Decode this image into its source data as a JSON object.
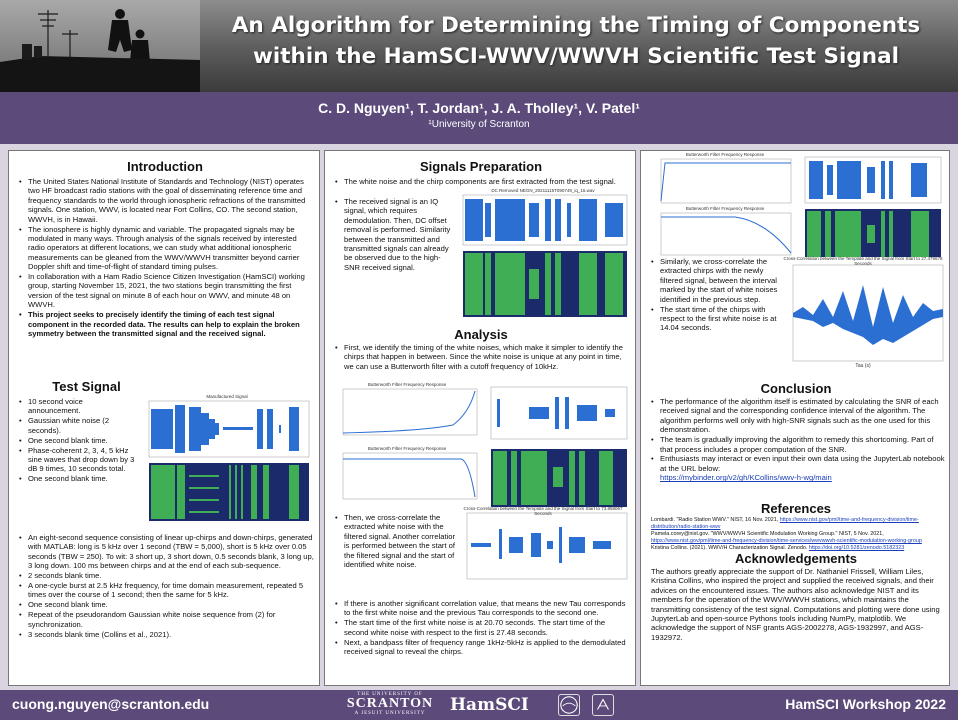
{
  "header": {
    "title": "An Algorithm for Determining the Timing of Components\nwithin the HamSCI-WWV/WWVH Scientific Test Signal",
    "authors": "C. D. Nguyen¹, T. Jordan¹, J. A. Tholley¹, V. Patel¹",
    "affiliation": "¹University of Scranton"
  },
  "introduction": {
    "title": "Introduction",
    "bullets": [
      "The United States National Institute of Standards and Technology (NIST) operates two HF broadcast radio stations with the goal of disseminating reference time and frequency standards to the world through ionospheric refractions of the transmitted signals. One station, WWV, is located near Fort Collins, CO. The second station, WWVH, is in Hawaii.",
      "The ionosphere is highly dynamic and variable. The propagated signals may be modulated in many ways. Through analysis of the signals received by interested radio operators at different locations, we can study what additional ionospheric measurements can be gleaned from the WWV/WWVH transmitter beyond carrier Doppler shift and time-of-flight of standard timing pulses.",
      "In collaboration with a Ham Radio Science Citizen Investigation (HamSCI) working group, starting November 15, 2021, the two stations begin transmitting the first version of the test signal on minute 8 of each hour on WWV, and minute 48 on WWVH.",
      "This project seeks to precisely identify the timing of each test signal component in the recorded data. The results can help to explain the broken symmetry between the transmitted signal and the received signal."
    ]
  },
  "test_signal": {
    "title": "Test Signal",
    "figure_title": "Manufactured Signal",
    "short_bullets": [
      "10 second voice announcement.",
      "Gaussian white noise (2 seconds).",
      "One second blank time.",
      "Phase-coherent 2, 3, 4, 5 kHz sine waves that drop down by 3 dB 9 times, 10 seconds total.",
      "One second blank time."
    ],
    "long_bullets": [
      "An eight-second sequence consisting of linear up-chirps and down-chirps, generated with MATLAB: long is 5 kHz over 1 second (TBW = 5,000), short is 5 kHz over 0.05 seconds (TBW = 250). To wit: 3 short up, 3 short down, 0.5 seconds blank, 3 long up, 3 long down. 100 ms between chirps and at the end of each sub-sequence.",
      "2 seconds blank time.",
      "A one-cycle burst at 2.5 kHz frequency, for time domain measurement, repeated 5 times over the course of 1 second; then the same for 5 kHz.",
      "One second blank time.",
      "Repeat of the pseudorandom Gaussian white noise sequence from (2) for synchronization.",
      "3 seconds blank time (Collins et al., 2021)."
    ]
  },
  "signals_preparation": {
    "title": "Signals Preparation",
    "bullets": [
      "The white noise and the chirp components are first extracted from the test signal.",
      "The received signal is an IQ signal, which requires demodulation. Then, DC offset removal is performed. Similarity between the transmitted and transmitted signals can already be observed due to the high-SNR received signal."
    ],
    "figure_title": "DC Removed NEGN_20211115T090749_iq_15.wav"
  },
  "analysis": {
    "title": "Analysis",
    "bullet_1": "First, we identify the timing of the white noises, which make it simpler to identify the chirps that happen in between. Since the white noise is unique at any point in time, we can use a Butterworth filter with a cutoff frequency of 10kHz.",
    "figure_title_a": "Butterworth Filter Frequency Response",
    "figure_title_b": "Butterworth Filter Frequency Response",
    "bullet_2": "Then, we cross-correlate the extracted white noise with the filtered signal. Another correlation is performed between the start of the filtered signal and the start of identified white noise.",
    "xcorr_title": "Cross-Correlation between the Template and the Signal from Start to 73.858067 Seconds",
    "bullets_after": [
      "If there is another significant correlation value, that means the new Tau corresponds to the first white noise and the previous Tau corresponds to the second one.",
      "The start time of the first white noise is at 20.70 seconds. The start time of the second white noise with respect to the first is 27.48 seconds.",
      "Next, a bandpass filter of frequency range 1kHz-5kHz is applied to the demodulated received signal to reveal the chirps."
    ]
  },
  "column3": {
    "figure_title_a": "Butterworth Filter Frequency Response",
    "figure_title_b": "Butterworth Filter Frequency Response",
    "xcorr_title": "Cross-Correlation between the Template and the Signal from Start to 27.479678 Seconds",
    "xcorr_xlabel": "Tau (s)",
    "bullets": [
      "Similarly, we cross-correlate the extracted chirps with the newly filtered signal, between the interval marked by the start of white noises identified in the previous step.",
      "The start time of the chirps with respect to the first white noise is at 14.04 seconds."
    ]
  },
  "conclusion": {
    "title": "Conclusion",
    "bullets": [
      "The performance of the algorithm itself is estimated by calculating the SNR of each received signal and the corresponding confidence interval of the algorithm. The algorithm performs well only with high-SNR signals such as the one used for this demonstration.",
      "The team is gradually improving the algorithm to remedy this shortcoming. Part of that process includes a proper computation of the SNR.",
      "Enthusiasts may interact or even input their own data using the JupyterLab notebook at the URL below:"
    ],
    "url": "https://mybinder.org/v2/gh/KCollins/wwv-h-wg/main"
  },
  "references": {
    "title": "References",
    "ref1_text": "Lombardi. \"Radio Station WWV.\" NIST, 16 Nov. 2021, ",
    "ref1_url": "https://www.nist.gov/pml/time-and-frequency-division/time-distribution/radio-station-wwv",
    "ref2_text": "Pamela.corey@nist.gov. \"WWV/WWVH Scientific Modulation Working Group.\" NIST, 5 Nov. 2021, ",
    "ref2_url": "https://www.nist.gov/pml/time-and-frequency-division/time-services/wwvwwvh-scientific-modulation-working-group",
    "ref3_text": "Kristina Collins. (2021). WWV/H Characterization Signal. Zenodo. ",
    "ref3_url": "https://doi.org/10.5281/zenodo.5182323"
  },
  "acknowledgements": {
    "title": "Acknowledgements",
    "text": "The authors greatly appreciate the support of Dr. Nathaniel Frissell, William Liles, Kristina Collins, who inspired the project and supplied the received signals, and their advices on the encountered issues. The authors also acknowledge NIST and its members for the operation of the WWV/WWVH stations, which maintains the transmitting consistency of the test signal. Computations and plotting were done using JupyterLab and open-source Pythons tools including NumPy, matplotlib. We acknowledge the support of NSF grants AGS-2002278, AGS-1932997, and AGS-1932972."
  },
  "footer": {
    "email": "cuong.nguyen@scranton.edu",
    "workshop": "HamSCI Workshop 2022",
    "logo_scranton_top": "THE UNIVERSITY OF",
    "logo_scranton_name": "SCRANTON",
    "logo_scranton_bottom": "A JESUIT UNIVERSITY",
    "logo_hamsci": "HamSCI"
  },
  "colors": {
    "purple_bar": "#5b4a7a",
    "link_blue": "#1a3fb8",
    "waveform_blue": "#2a6fd1",
    "spectrogram_green": "#3fae55"
  }
}
